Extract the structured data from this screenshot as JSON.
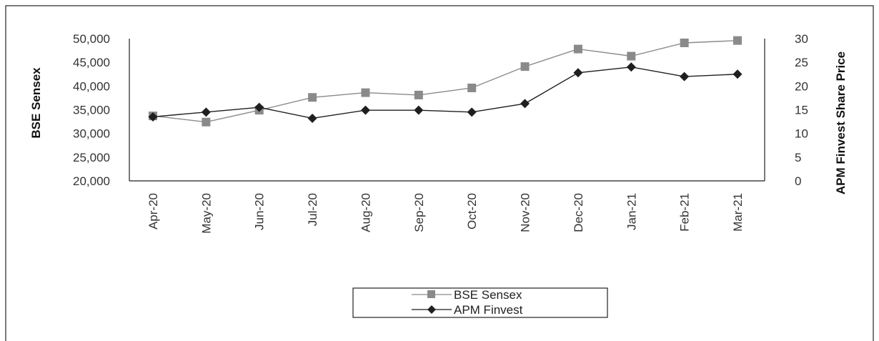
{
  "chart_data": {
    "type": "line",
    "title": "",
    "categories": [
      "Apr-20",
      "May-20",
      "Jun-20",
      "Jul-20",
      "Aug-20",
      "Sep-20",
      "Oct-20",
      "Nov-20",
      "Dec-20",
      "Jan-21",
      "Feb-21",
      "Mar-21"
    ],
    "left_axis": {
      "label": "BSE Sensex",
      "ylim": [
        20000,
        50000
      ],
      "ticks": [
        "20,000",
        "25,000",
        "30,000",
        "35,000",
        "40,000",
        "45,000",
        "50,000"
      ]
    },
    "right_axis": {
      "label": "APM Finvest Share Price",
      "ylim": [
        0,
        30
      ],
      "ticks": [
        "0",
        "5",
        "10",
        "15",
        "20",
        "25",
        "30"
      ]
    },
    "series": [
      {
        "name": "BSE Sensex",
        "axis": "left",
        "marker": "square",
        "color": "#8a8a8a",
        "values": [
          33700,
          32400,
          34900,
          37600,
          38600,
          38100,
          39600,
          44100,
          47800,
          46300,
          49100,
          49600
        ]
      },
      {
        "name": "APM Finvest",
        "axis": "right",
        "marker": "diamond",
        "color": "#1f1f1f",
        "values": [
          13.5,
          14.5,
          15.5,
          13.2,
          14.9,
          14.9,
          14.5,
          16.3,
          22.8,
          24.0,
          22.0,
          22.5
        ]
      }
    ],
    "legend": {
      "position": "bottom-center"
    },
    "grid": false
  }
}
